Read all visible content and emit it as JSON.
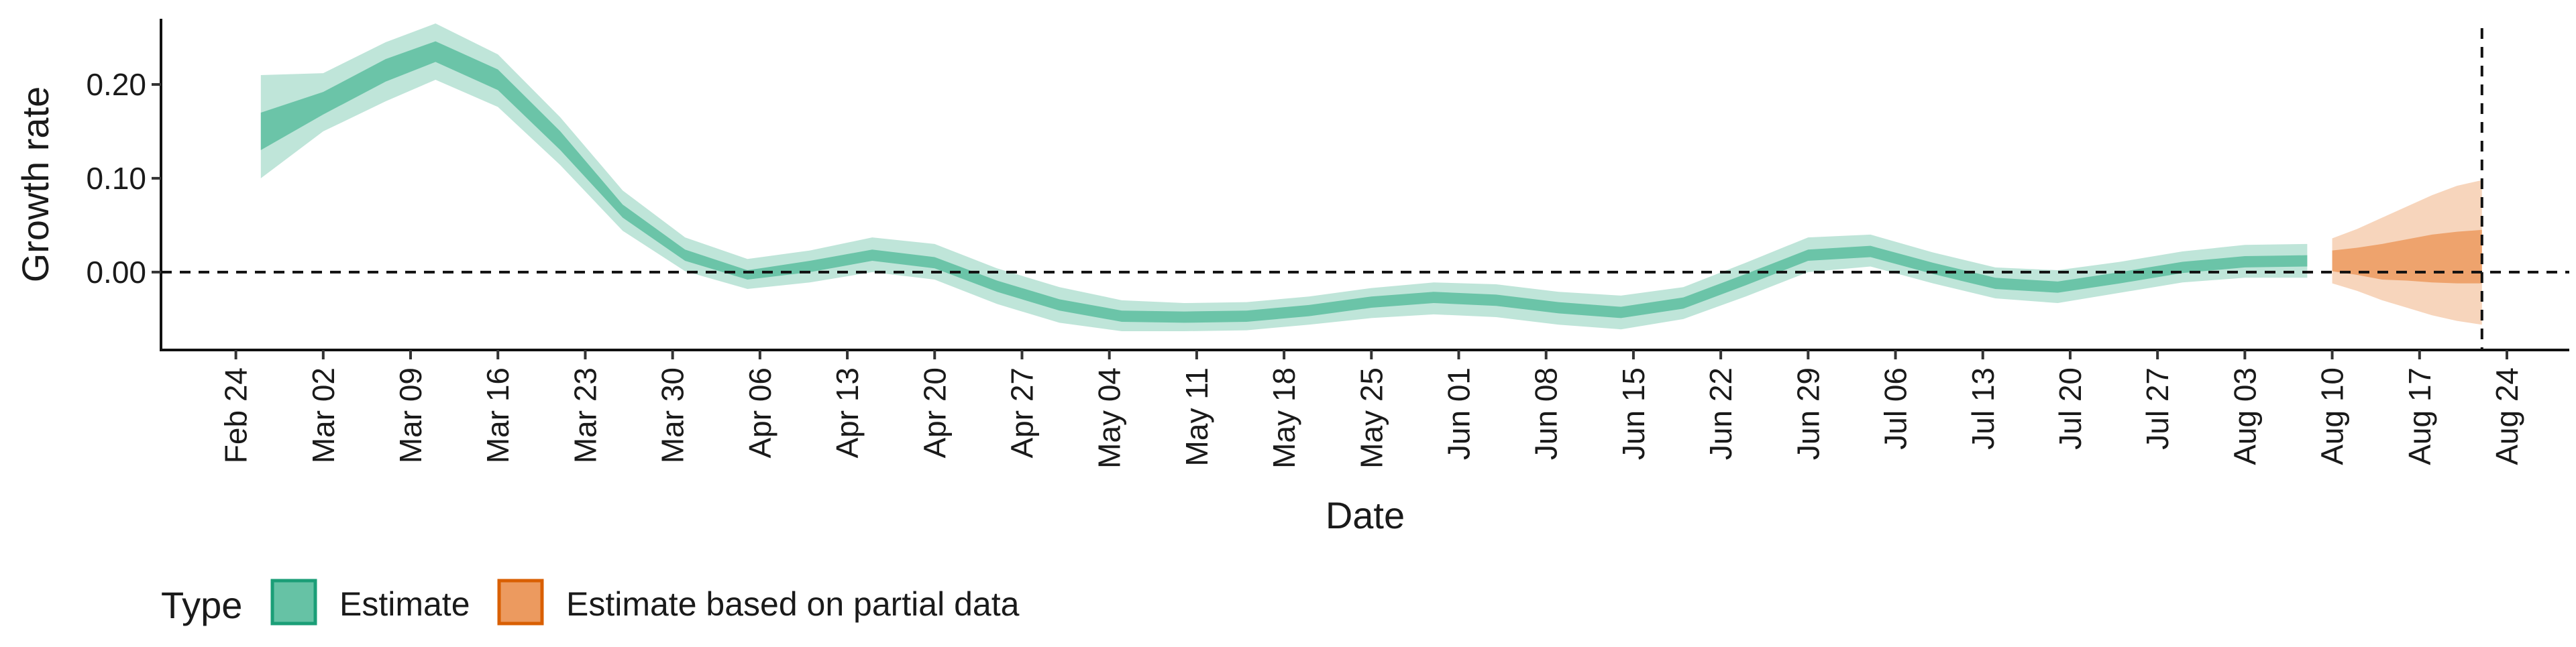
{
  "chart_data": {
    "type": "area",
    "xlabel": "Date",
    "ylabel": "Growth rate",
    "x_ticks": [
      "Feb 24",
      "Mar 02",
      "Mar 09",
      "Mar 16",
      "Mar 23",
      "Mar 30",
      "Apr 06",
      "Apr 13",
      "Apr 20",
      "Apr 27",
      "May 04",
      "May 11",
      "May 18",
      "May 25",
      "Jun 01",
      "Jun 08",
      "Jun 15",
      "Jun 22",
      "Jun 29",
      "Jul 06",
      "Jul 13",
      "Jul 20",
      "Jul 27",
      "Aug 03",
      "Aug 10",
      "Aug 17",
      "Aug 24"
    ],
    "y_ticks": [
      0.0,
      0.1,
      0.2
    ],
    "y_tick_labels": [
      "0.00",
      "0.10",
      "0.20"
    ],
    "ylim": [
      -0.083,
      0.27
    ],
    "xlim": [
      "2020-02-18",
      "2020-08-29"
    ],
    "reference_lines": {
      "horizontal_y": 0.0,
      "vertical_date": "2020-08-22"
    },
    "legend": {
      "title": "Type",
      "position": "bottom-left",
      "entries": [
        {
          "label": "Estimate",
          "fill": "#66c2a5",
          "stroke": "#1b9e77"
        },
        {
          "label": "Estimate based on partial data",
          "fill": "#ec9a5f",
          "stroke": "#d95f02"
        }
      ]
    },
    "series": [
      {
        "name": "Estimate",
        "color": "#66c2a5",
        "dates": [
          "2020-02-26",
          "2020-03-02",
          "2020-03-07",
          "2020-03-11",
          "2020-03-16",
          "2020-03-21",
          "2020-03-26",
          "2020-03-31",
          "2020-04-05",
          "2020-04-10",
          "2020-04-15",
          "2020-04-20",
          "2020-04-25",
          "2020-04-30",
          "2020-05-05",
          "2020-05-10",
          "2020-05-15",
          "2020-05-20",
          "2020-05-25",
          "2020-05-30",
          "2020-06-04",
          "2020-06-09",
          "2020-06-14",
          "2020-06-19",
          "2020-06-24",
          "2020-06-29",
          "2020-07-04",
          "2020-07-09",
          "2020-07-14",
          "2020-07-19",
          "2020-07-24",
          "2020-07-29",
          "2020-08-03",
          "2020-08-08"
        ],
        "median": [
          0.15,
          0.18,
          0.215,
          0.235,
          0.205,
          0.14,
          0.065,
          0.018,
          -0.003,
          0.006,
          0.018,
          0.01,
          -0.015,
          -0.035,
          -0.047,
          -0.048,
          -0.047,
          -0.041,
          -0.032,
          -0.027,
          -0.03,
          -0.038,
          -0.043,
          -0.033,
          -0.008,
          0.018,
          0.022,
          0.004,
          -0.012,
          -0.016,
          -0.006,
          0.005,
          0.011,
          0.012
        ],
        "lower_50": [
          0.13,
          0.168,
          0.203,
          0.224,
          0.194,
          0.13,
          0.058,
          0.012,
          -0.008,
          0.0,
          0.012,
          0.004,
          -0.021,
          -0.041,
          -0.053,
          -0.054,
          -0.053,
          -0.047,
          -0.038,
          -0.033,
          -0.036,
          -0.044,
          -0.049,
          -0.039,
          -0.014,
          0.012,
          0.016,
          -0.002,
          -0.018,
          -0.022,
          -0.012,
          -0.001,
          0.005,
          0.006
        ],
        "upper_50": [
          0.17,
          0.192,
          0.227,
          0.246,
          0.216,
          0.15,
          0.072,
          0.024,
          0.002,
          0.012,
          0.024,
          0.016,
          -0.009,
          -0.029,
          -0.041,
          -0.042,
          -0.041,
          -0.035,
          -0.026,
          -0.021,
          -0.024,
          -0.032,
          -0.037,
          -0.027,
          -0.002,
          0.024,
          0.028,
          0.01,
          -0.006,
          -0.01,
          0.0,
          0.011,
          0.017,
          0.018
        ],
        "lower_90": [
          0.1,
          0.15,
          0.182,
          0.205,
          0.176,
          0.114,
          0.044,
          0.001,
          -0.018,
          -0.011,
          0.0,
          -0.008,
          -0.034,
          -0.054,
          -0.063,
          -0.063,
          -0.062,
          -0.056,
          -0.049,
          -0.045,
          -0.048,
          -0.056,
          -0.061,
          -0.05,
          -0.026,
          0.0,
          0.006,
          -0.012,
          -0.028,
          -0.033,
          -0.022,
          -0.011,
          -0.006,
          -0.006
        ],
        "upper_90": [
          0.21,
          0.212,
          0.245,
          0.265,
          0.232,
          0.165,
          0.087,
          0.037,
          0.014,
          0.023,
          0.037,
          0.03,
          0.004,
          -0.016,
          -0.03,
          -0.033,
          -0.032,
          -0.026,
          -0.017,
          -0.011,
          -0.013,
          -0.021,
          -0.025,
          -0.016,
          0.01,
          0.037,
          0.04,
          0.021,
          0.005,
          0.002,
          0.011,
          0.022,
          0.029,
          0.03
        ]
      },
      {
        "name": "Estimate based on partial data",
        "color": "#ec9a5f",
        "dates": [
          "2020-08-10",
          "2020-08-12",
          "2020-08-14",
          "2020-08-16",
          "2020-08-18",
          "2020-08-20",
          "2020-08-22"
        ],
        "median": [
          0.012,
          0.012,
          0.013,
          0.015,
          0.017,
          0.018,
          0.019
        ],
        "lower_50": [
          0.001,
          -0.003,
          -0.008,
          -0.009,
          -0.011,
          -0.012,
          -0.012
        ],
        "upper_50": [
          0.023,
          0.026,
          0.03,
          0.035,
          0.04,
          0.043,
          0.045
        ],
        "lower_90": [
          -0.012,
          -0.02,
          -0.03,
          -0.038,
          -0.046,
          -0.052,
          -0.056
        ],
        "upper_90": [
          0.036,
          0.046,
          0.058,
          0.07,
          0.082,
          0.092,
          0.098
        ]
      }
    ]
  }
}
